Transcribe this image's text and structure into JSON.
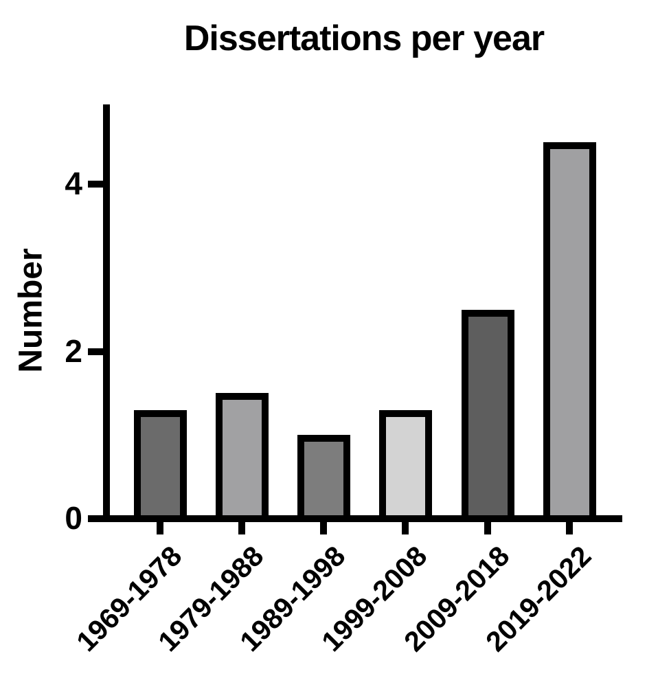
{
  "chart_data": {
    "type": "bar",
    "title": "Dissertations per year",
    "xlabel": "",
    "ylabel": "Number",
    "categories": [
      "1969-1978",
      "1979-1988",
      "1989-1998",
      "1999-2008",
      "2009-2018",
      "2019-2022"
    ],
    "values": [
      1.3,
      1.5,
      1.0,
      1.3,
      2.5,
      4.5
    ],
    "bar_colors": [
      "#6b6b6b",
      "#a1a1a3",
      "#7d7d7d",
      "#d3d3d3",
      "#5e5e5e",
      "#a0a0a2"
    ],
    "bar_edge_color": "#000000",
    "axis_color": "#000000",
    "background_color": "#ffffff",
    "ylim": [
      0,
      5
    ],
    "yticks": [
      0,
      2,
      4
    ],
    "grid": false,
    "legend": "none"
  }
}
